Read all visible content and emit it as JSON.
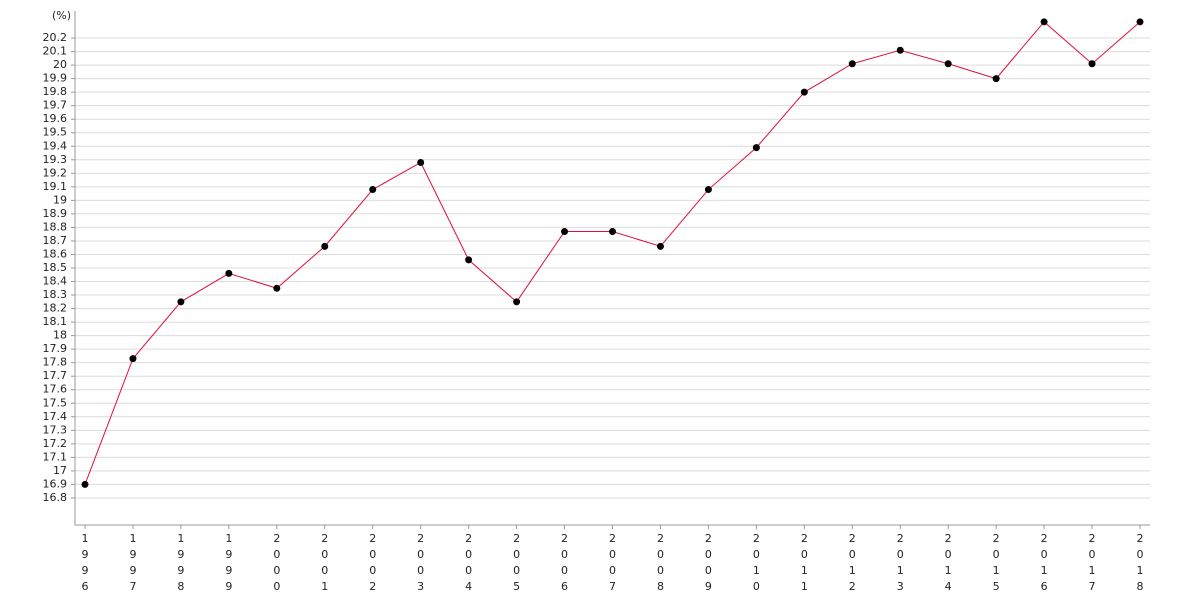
{
  "chart_data": {
    "type": "line",
    "unit_label": "(%)",
    "categories": [
      "1996",
      "1997",
      "1998",
      "1999",
      "2000",
      "2001",
      "2002",
      "2003",
      "2004",
      "2005",
      "2006",
      "2007",
      "2008",
      "2009",
      "2010",
      "2011",
      "2012",
      "2013",
      "2014",
      "2015",
      "2016",
      "2017",
      "2018"
    ],
    "series": [
      {
        "color": "#e0103a",
        "marker_color": "#000000",
        "values": [
          16.9,
          17.83,
          18.25,
          18.46,
          18.35,
          18.66,
          19.08,
          19.28,
          18.56,
          18.25,
          18.77,
          18.77,
          18.66,
          19.08,
          19.39,
          19.8,
          20.01,
          20.11,
          20.01,
          19.9,
          20.32,
          20.01,
          20.32
        ]
      }
    ],
    "ylim": [
      16.6,
      20.4
    ],
    "yticks": [
      16.8,
      16.9,
      17,
      17.1,
      17.2,
      17.3,
      17.4,
      17.5,
      17.6,
      17.7,
      17.8,
      17.9,
      18,
      18.1,
      18.2,
      18.3,
      18.4,
      18.5,
      18.6,
      18.7,
      18.8,
      18.9,
      19,
      19.1,
      19.2,
      19.3,
      19.4,
      19.5,
      19.6,
      19.7,
      19.8,
      19.9,
      20,
      20.1,
      20.2
    ],
    "grid": true
  }
}
